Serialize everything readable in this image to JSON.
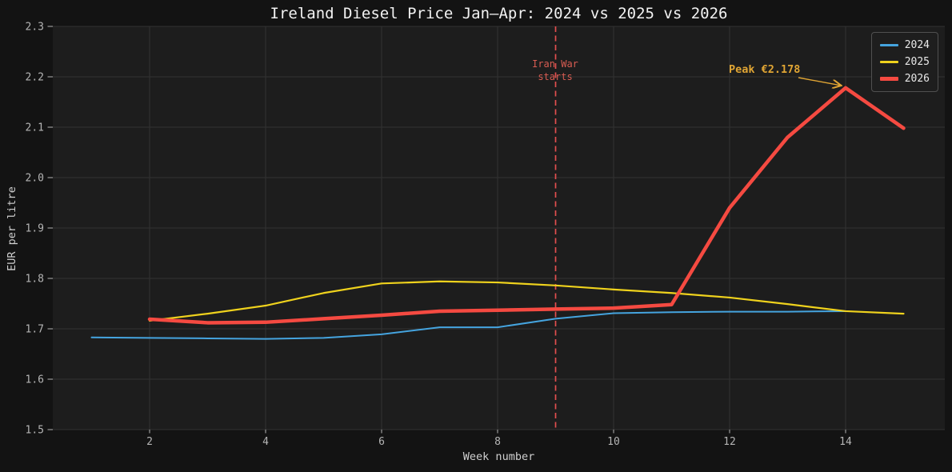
{
  "chart_data": {
    "type": "line",
    "title": "Ireland Diesel Price Jan—Apr: 2024 vs 2025 vs 2026",
    "xlabel": "Week number",
    "ylabel": "EUR per litre",
    "xlim": [
      0.33,
      15.71
    ],
    "ylim": [
      1.5,
      2.3
    ],
    "xticks": [
      2,
      4,
      6,
      8,
      10,
      12,
      14
    ],
    "ytick_labels": [
      "1.5",
      "1.6",
      "1.7",
      "1.8",
      "1.9",
      "2.0",
      "2.1",
      "2.2",
      "2.3"
    ],
    "grid": true,
    "legend_position": "upper right",
    "series": [
      {
        "name": "2024",
        "color": "#45a4df",
        "line_width": 2,
        "x": [
          1,
          2,
          3,
          4,
          5,
          6,
          7,
          8,
          9,
          10,
          11,
          12,
          13,
          14
        ],
        "y": [
          1.683,
          1.682,
          1.681,
          1.68,
          1.682,
          1.689,
          1.703,
          1.703,
          1.72,
          1.731,
          1.733,
          1.734,
          1.734,
          1.735
        ]
      },
      {
        "name": "2025",
        "color": "#efd21d",
        "line_width": 2.2,
        "x": [
          2,
          3,
          4,
          5,
          6,
          7,
          8,
          9,
          10,
          11,
          12,
          13,
          14,
          15
        ],
        "y": [
          1.716,
          1.73,
          1.746,
          1.771,
          1.79,
          1.794,
          1.792,
          1.786,
          1.778,
          1.771,
          1.762,
          1.749,
          1.735,
          1.73
        ]
      },
      {
        "name": "2026",
        "color": "#f54a41",
        "line_width": 4.5,
        "x": [
          2,
          3,
          4,
          5,
          6,
          7,
          8,
          9,
          10,
          11,
          12,
          13,
          14,
          15
        ],
        "y": [
          1.719,
          1.712,
          1.713,
          1.72,
          1.727,
          1.735,
          1.737,
          1.739,
          1.741,
          1.748,
          1.94,
          2.08,
          2.178,
          2.098
        ]
      }
    ],
    "event_line": {
      "x": 9,
      "style": "dashed",
      "color": "#e34f4f",
      "label": "Iran War\nstarts",
      "label_color": "#d85c52"
    },
    "annotations": [
      {
        "text": "Peak €2.178",
        "x": 14,
        "y": 2.178,
        "color": "#e0a534"
      }
    ]
  }
}
